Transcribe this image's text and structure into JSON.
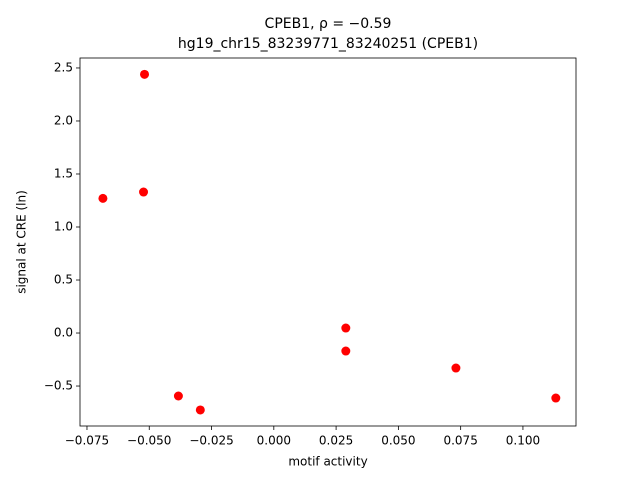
{
  "chart_data": {
    "type": "scatter",
    "title": "CPEB1, ρ = −0.59",
    "subtitle": "hg19_chr15_83239771_83240251 (CPEB1)",
    "x_label": "motif activity",
    "y_label": "signal at CRE (ln)",
    "color": "#ff0000",
    "x": [
      -0.0686,
      -0.0519,
      -0.0523,
      -0.0383,
      -0.0295,
      0.0289,
      0.0289,
      0.0731,
      0.1132
    ],
    "values": [
      1.27,
      2.44,
      1.33,
      -0.594,
      -0.726,
      0.047,
      -0.17,
      -0.33,
      -0.613
    ],
    "xlim": [
      -0.0778,
      0.1213
    ],
    "ylim": [
      -0.877,
      2.594
    ],
    "xticks": [
      {
        "value": -0.075,
        "label": "−0.075"
      },
      {
        "value": -0.05,
        "label": "−0.050"
      },
      {
        "value": -0.025,
        "label": "−0.025"
      },
      {
        "value": 0,
        "label": "0.000"
      },
      0.025,
      {
        "value": 0.05,
        "label": "0.050"
      },
      0.075,
      {
        "value": 0.1,
        "label": "0.100"
      }
    ],
    "yticks": [
      {
        "value": -0.5,
        "label": "−0.5"
      },
      {
        "value": 0,
        "label": "0.0"
      },
      0.5,
      {
        "value": 1,
        "label": "1.0"
      },
      1.5,
      {
        "value": 2,
        "label": "2.0"
      },
      2.5
    ],
    "grid": false
  }
}
